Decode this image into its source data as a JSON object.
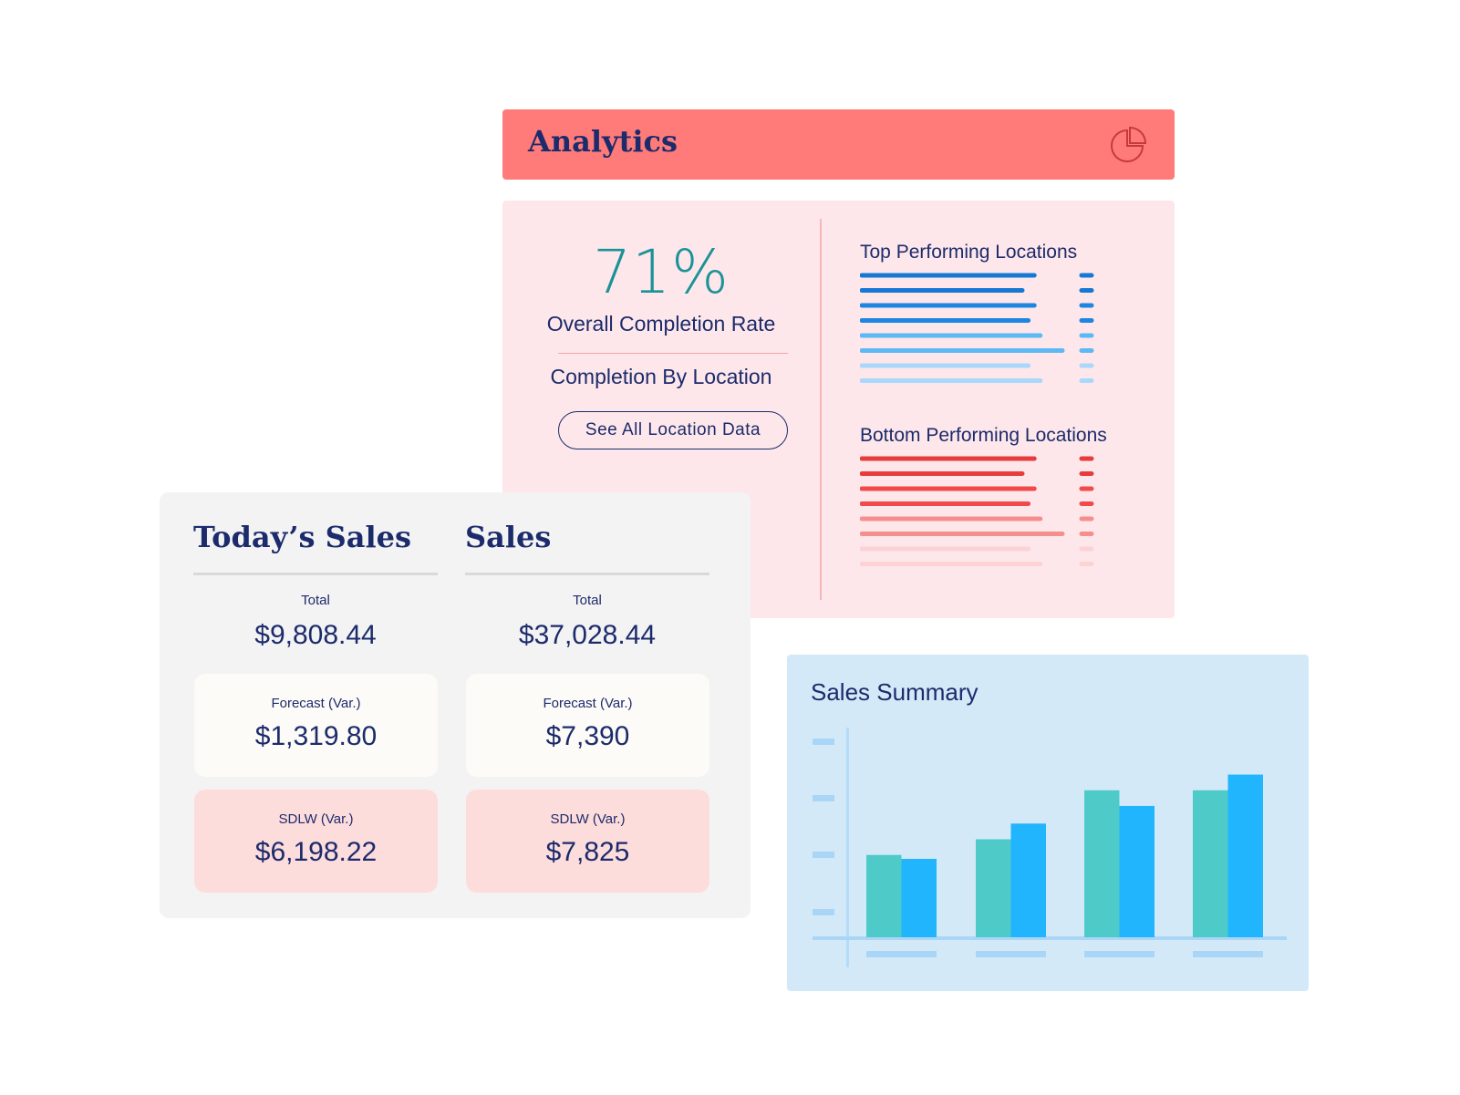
{
  "analytics": {
    "title": "Analytics",
    "icon": "pie-chart-icon",
    "accent": "#fe7b79",
    "completion": {
      "rate": "71%",
      "rate_label": "Overall Completion Rate",
      "by_location_label": "Completion By Location",
      "button_label": "See All Location Data"
    },
    "top_locations": {
      "title": "Top Performing Locations",
      "bar_fractions": [
        0.86,
        0.8,
        0.86,
        0.83,
        0.89,
        1.0,
        0.83,
        0.89
      ],
      "colors": [
        "#1478d4",
        "#1478d4",
        "#1e85e0",
        "#1e85e0",
        "#5db9f5",
        "#5db9f5",
        "#a9d8fb",
        "#a9d8fb"
      ]
    },
    "bottom_locations": {
      "title": "Bottom Performing Locations",
      "bar_fractions": [
        0.86,
        0.8,
        0.86,
        0.83,
        0.89,
        1.0,
        0.83,
        0.89
      ],
      "colors": [
        "#e83c3c",
        "#e83c3c",
        "#f24a4a",
        "#f24a4a",
        "#f58f8e",
        "#f58f8e",
        "#fcd2d4",
        "#fcd2d4"
      ]
    }
  },
  "sales": {
    "todays": {
      "title": "Today’s Sales",
      "total_label": "Total",
      "total_value": "$9,808.44",
      "forecast_label": "Forecast (Var.)",
      "forecast_value": "$1,319.80",
      "sdlw_label": "SDLW (Var.)",
      "sdlw_value": "$6,198.22"
    },
    "overall": {
      "title": "Sales",
      "total_label": "Total",
      "total_value": "$37,028.44",
      "forecast_label": "Forecast (Var.)",
      "forecast_value": "$7,390",
      "sdlw_label": "SDLW (Var.)",
      "sdlw_value": "$7,825"
    }
  },
  "chart_data": {
    "type": "bar",
    "title": "Sales Summary",
    "categories": [
      "",
      "",
      "",
      ""
    ],
    "series": [
      {
        "values": [
          42,
          50,
          75,
          75
        ],
        "color": "#4ecbc8"
      },
      {
        "values": [
          40,
          58,
          67,
          83
        ],
        "color": "#20b5fc"
      }
    ],
    "ylim": [
      0,
      100
    ],
    "grid": false
  }
}
